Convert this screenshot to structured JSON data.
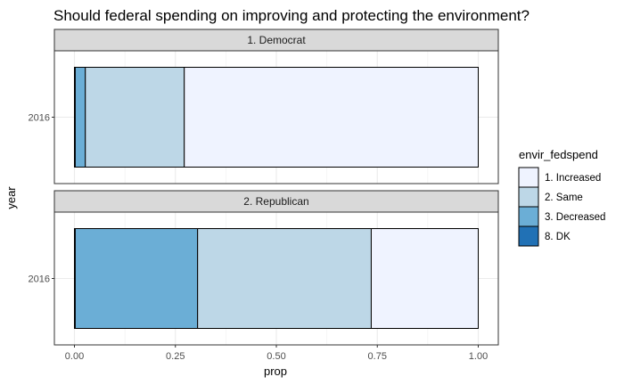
{
  "chart_data": {
    "type": "bar",
    "orientation": "horizontal-stacked",
    "title": "Should federal spending on improving and protecting the environment?",
    "xlabel": "prop",
    "ylabel": "year",
    "xlim": [
      0,
      1
    ],
    "x_ticks": [
      "0.00",
      "0.25",
      "0.50",
      "0.75",
      "1.00"
    ],
    "grid": true,
    "legend": {
      "title": "envir_fedspend",
      "placement": "right",
      "entries": [
        {
          "label": "1. Increased",
          "color": "#eff3ff"
        },
        {
          "label": "2. Same",
          "color": "#bdd7e7"
        },
        {
          "label": "3. Decreased",
          "color": "#6baed6"
        },
        {
          "label": "8. DK",
          "color": "#2171b5"
        }
      ]
    },
    "panels": [
      {
        "strip": "1. Democrat",
        "category": "2016",
        "segments": [
          {
            "label": "8. DK",
            "color": "#2171b5",
            "value": 0.002
          },
          {
            "label": "3. Decreased",
            "color": "#6baed6",
            "value": 0.025
          },
          {
            "label": "2. Same",
            "color": "#bdd7e7",
            "value": 0.245
          },
          {
            "label": "1. Increased",
            "color": "#eff3ff",
            "value": 0.728
          }
        ]
      },
      {
        "strip": "2. Republican",
        "category": "2016",
        "segments": [
          {
            "label": "8. DK",
            "color": "#2171b5",
            "value": 0.002
          },
          {
            "label": "3. Decreased",
            "color": "#6baed6",
            "value": 0.303
          },
          {
            "label": "2. Same",
            "color": "#bdd7e7",
            "value": 0.43
          },
          {
            "label": "1. Increased",
            "color": "#eff3ff",
            "value": 0.265
          }
        ]
      }
    ]
  }
}
